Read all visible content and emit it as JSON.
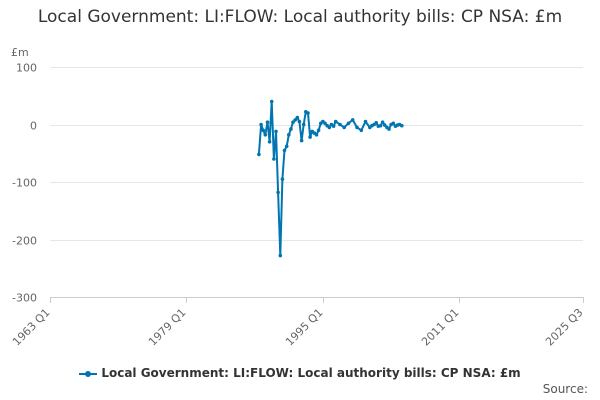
{
  "chart_data": {
    "type": "line",
    "title": "Local Government: LI:FLOW: Local authority bills: CP NSA: £m",
    "unit_label": "£m",
    "x_ticks": [
      "1963 Q1",
      "1979 Q1",
      "1995 Q1",
      "2011 Q1",
      "2025 Q3"
    ],
    "xlim": [
      1963.0,
      2025.5
    ],
    "y_ticks": [
      100,
      0,
      -100,
      -200,
      -300
    ],
    "ylim": [
      -300,
      100
    ],
    "grid": "horizontal",
    "legend_position": "bottom",
    "series": [
      {
        "name": "Local Government: LI:FLOW: Local authority bills: CP NSA: £m",
        "color": "#0075b0",
        "x": [
          1987.5,
          1987.75,
          1988.0,
          1988.25,
          1988.5,
          1988.75,
          1989.0,
          1989.25,
          1989.5,
          1989.75,
          1990.0,
          1990.25,
          1990.5,
          1990.75,
          1991.0,
          1991.25,
          1991.5,
          1991.75,
          1992.0,
          1992.25,
          1992.5,
          1992.75,
          1993.0,
          1993.25,
          1993.5,
          1993.75,
          1994.0,
          1994.25,
          1994.5,
          1994.75,
          1995.0,
          1995.25,
          1995.5,
          1995.75,
          1996.0,
          1996.25,
          1996.5,
          1997.0,
          1997.5,
          1998.0,
          1998.5,
          1999.0,
          1999.5,
          2000.0,
          2000.5,
          2000.75,
          2001.0,
          2001.25,
          2001.5,
          2001.75,
          2002.0,
          2002.25,
          2002.5,
          2002.75,
          2003.0,
          2003.25,
          2003.5,
          2003.75,
          2004.0,
          2004.25
        ],
        "y": [
          -52,
          0,
          -10,
          -18,
          4,
          -30,
          40,
          -60,
          -12,
          -118,
          -228,
          -95,
          -45,
          -38,
          -18,
          -8,
          4,
          8,
          12,
          5,
          -28,
          0,
          22,
          20,
          -22,
          -12,
          -15,
          -18,
          -10,
          2,
          5,
          2,
          -2,
          -5,
          0,
          -3,
          5,
          0,
          -5,
          2,
          8,
          -5,
          -10,
          5,
          -5,
          -2,
          0,
          3,
          -3,
          -2,
          4,
          -1,
          -5,
          -8,
          0,
          2,
          -3,
          -1,
          0,
          -2
        ]
      }
    ]
  },
  "source_label": "Source:"
}
